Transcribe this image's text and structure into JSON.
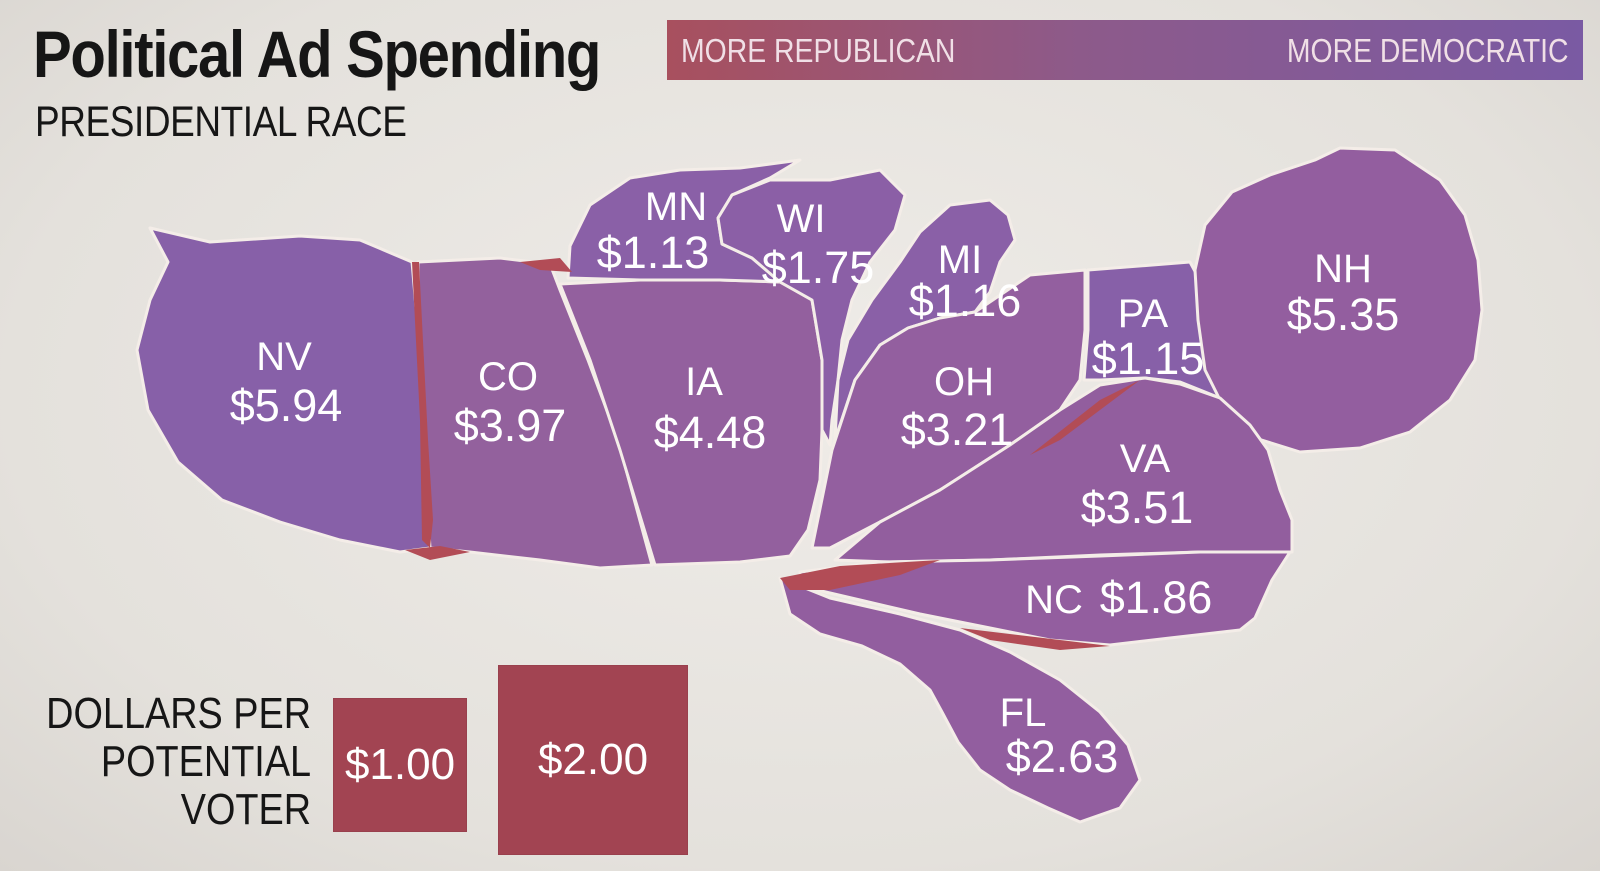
{
  "header": {
    "title": "Political Ad Spending",
    "subtitle": "PRESIDENTIAL RACE"
  },
  "color_legend": {
    "left_label": "MORE REPUBLICAN",
    "right_label": "MORE DEMOCRATIC",
    "republican_color": "#a8505e",
    "democratic_color": "#7a5aa3"
  },
  "states": [
    {
      "abbr": "NV",
      "amount": "$5.94",
      "color": "#8760a8"
    },
    {
      "abbr": "CO",
      "amount": "$3.97",
      "color": "#93619d"
    },
    {
      "abbr": "IA",
      "amount": "$4.48",
      "color": "#93609e"
    },
    {
      "abbr": "MN",
      "amount": "$1.13",
      "color": "#8a60a7"
    },
    {
      "abbr": "WI",
      "amount": "$1.75",
      "color": "#8b5fa6"
    },
    {
      "abbr": "MI",
      "amount": "$1.16",
      "color": "#8a60a7"
    },
    {
      "abbr": "OH",
      "amount": "$3.21",
      "color": "#935f9f"
    },
    {
      "abbr": "PA",
      "amount": "$1.15",
      "color": "#8760a8"
    },
    {
      "abbr": "NH",
      "amount": "$5.35",
      "color": "#935e9f"
    },
    {
      "abbr": "VA",
      "amount": "$3.51",
      "color": "#925e9e"
    },
    {
      "abbr": "NC",
      "amount": "$1.86",
      "color": "#935e9f"
    },
    {
      "abbr": "FL",
      "amount": "$2.63",
      "color": "#925e9f"
    }
  ],
  "size_legend": {
    "label_line1": "DOLLARS PER",
    "label_line2": "POTENTIAL",
    "label_line3": "VOTER",
    "box_small": "$1.00",
    "box_large": "$2.00",
    "box_color": "#a24452"
  }
}
